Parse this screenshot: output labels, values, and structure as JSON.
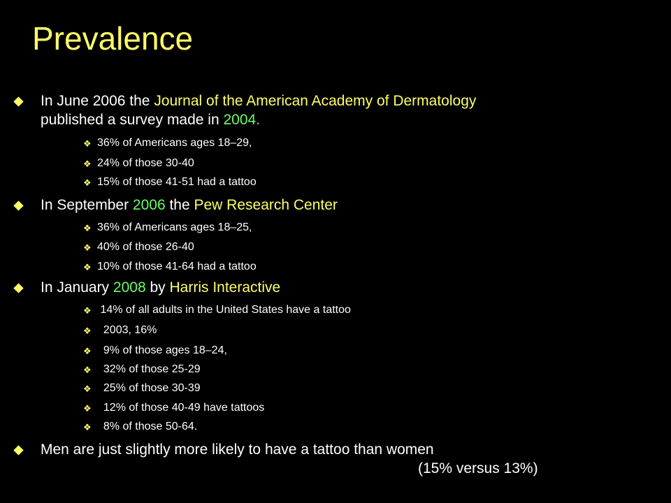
{
  "slide": {
    "title": "Prevalence",
    "b1": {
      "t1": "In June 2006 the ",
      "t2": "Journal of the American Academy of Dermatology",
      "t3": "published a survey made in ",
      "t4": "2004."
    },
    "b1_sub": [
      " 36% of Americans ages 18–29,",
      "24% of those 30-40",
      "15% of those 41-51  had a tattoo"
    ],
    "b2": {
      "t1": "In September ",
      "t2": "2006",
      "t3": " the ",
      "t4": "Pew Research Center"
    },
    "b2_sub": [
      "36% of Americans ages 18–25,",
      "40% of those 26-40",
      "10% of those 41-64 had a tattoo"
    ],
    "b3": {
      "t1": "In January ",
      "t2": "2008",
      "t3": " by ",
      "t4": "Harris Interactive"
    },
    "b3_sub": [
      " 14% of all adults in the United States have a tattoo",
      "  2003, 16%",
      "  9% of those ages 18–24,",
      "  32% of those 25-29",
      "  25% of those 30-39",
      "  12% of those 40-49 have tattoos",
      "  8% of those 50-64."
    ],
    "b4": {
      "t1": "Men are just slightly more likely to have a tattoo than women",
      "t2": "(15% versus 13%)"
    }
  },
  "colors": {
    "background": "#000000",
    "title": "#ffff66",
    "highlight": "#ffff66",
    "year": "#66ff66",
    "body": "#ffffff"
  },
  "icons": {
    "level1": "diamond-bullet-icon",
    "level2": "quad-diamond-bullet-icon"
  }
}
